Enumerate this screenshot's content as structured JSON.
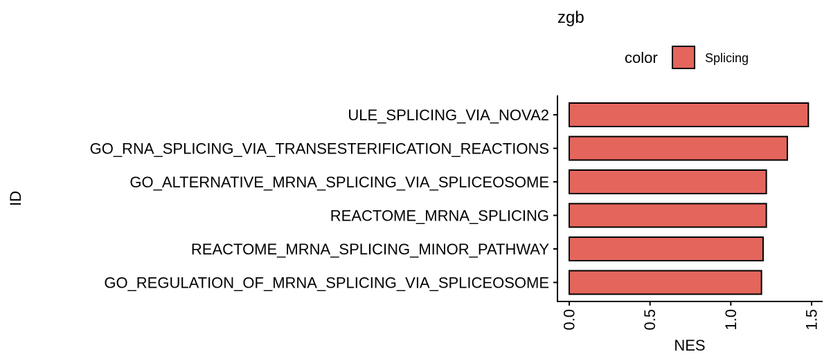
{
  "chart_data": {
    "type": "bar",
    "orientation": "horizontal",
    "title": "zgb",
    "xlabel": "NES",
    "ylabel": "ID",
    "categories": [
      "ULE_SPLICING_VIA_NOVA2",
      "GO_RNA_SPLICING_VIA_TRANSESTERIFICATION_REACTIONS",
      "GO_ALTERNATIVE_MRNA_SPLICING_VIA_SPLICEOSOME",
      "REACTOME_MRNA_SPLICING",
      "REACTOME_MRNA_SPLICING_MINOR_PATHWAY",
      "GO_REGULATION_OF_MRNA_SPLICING_VIA_SPLICEOSOME"
    ],
    "values": [
      1.48,
      1.35,
      1.22,
      1.22,
      1.2,
      1.19
    ],
    "xlim": [
      0,
      1.5
    ],
    "xticks": [
      "0.0",
      "0.5",
      "1.0",
      "1.5"
    ],
    "grid": false,
    "legend": {
      "title": "color",
      "position": "top",
      "items": [
        {
          "label": "Splicing",
          "color": "#E4655B"
        }
      ]
    },
    "bar_color": "#E4655B",
    "bar_edge_color": "#000000"
  }
}
